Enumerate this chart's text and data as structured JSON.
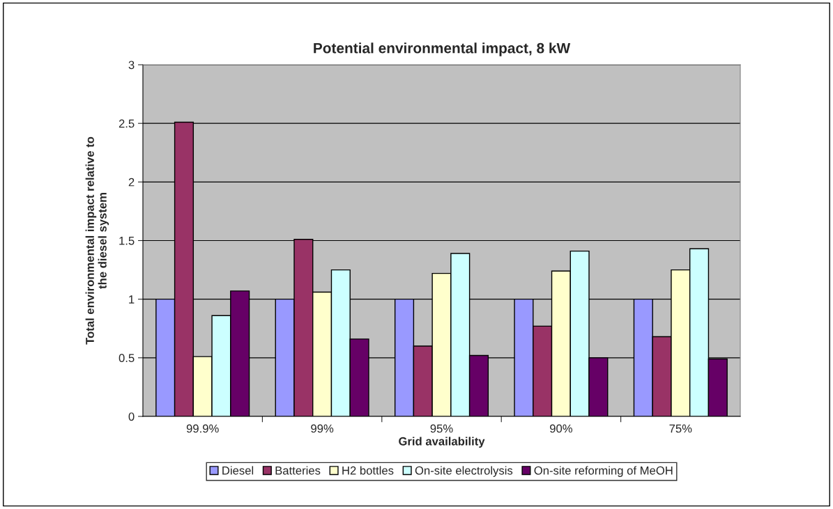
{
  "chart_data": {
    "type": "bar",
    "title": "Potential environmental impact, 8 kW",
    "xlabel": "Grid availability",
    "ylabel": "Total environmental impact relative to\nthe diesel system",
    "categories": [
      "99.9%",
      "99%",
      "95%",
      "90%",
      "75%"
    ],
    "series": [
      {
        "name": "Diesel",
        "color": "#9999ff",
        "values": [
          1,
          1,
          1,
          1,
          1
        ]
      },
      {
        "name": "Batteries",
        "color": "#993366",
        "values": [
          2.51,
          1.51,
          0.6,
          0.77,
          0.68
        ]
      },
      {
        "name": "H2 bottles",
        "color": "#ffffcc",
        "values": [
          0.51,
          1.06,
          1.22,
          1.24,
          1.25
        ]
      },
      {
        "name": "On-site electrolysis",
        "color": "#ccffff",
        "values": [
          0.86,
          1.25,
          1.39,
          1.41,
          1.43
        ]
      },
      {
        "name": "On-site reforming of MeOH",
        "color": "#660066",
        "values": [
          1.07,
          0.66,
          0.52,
          0.5,
          0.49
        ]
      }
    ],
    "ylim": [
      0,
      3
    ],
    "yticks": [
      0,
      0.5,
      1,
      1.5,
      2,
      2.5,
      3
    ],
    "grid": "y",
    "legend": "bottom"
  }
}
